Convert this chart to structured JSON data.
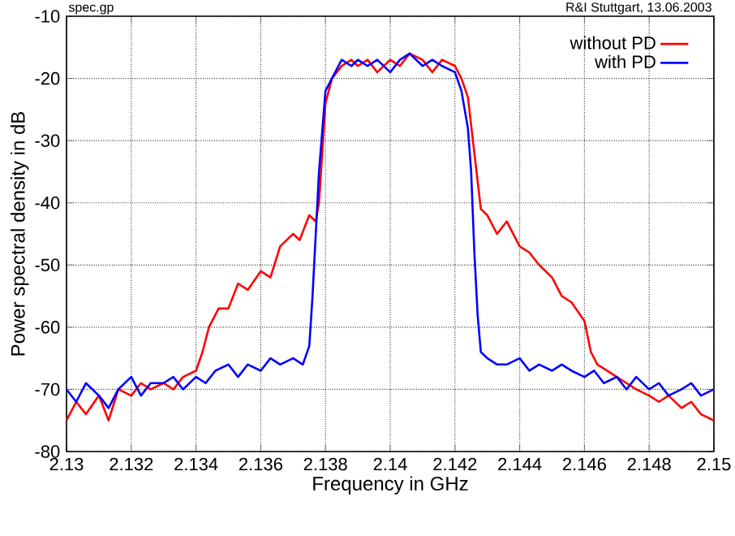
{
  "chart_data": {
    "type": "line",
    "xlabel": "Frequency in GHz",
    "ylabel": "Power spectral density in dB",
    "annotations": [
      "spec.gp",
      "R&I Stuttgart, 13.06.2003"
    ],
    "xlim": [
      2.13,
      2.15
    ],
    "ylim": [
      -80,
      -10
    ],
    "xticks": [
      2.13,
      2.132,
      2.134,
      2.136,
      2.138,
      2.14,
      2.142,
      2.144,
      2.146,
      2.148,
      2.15
    ],
    "yticks": [
      -80,
      -70,
      -60,
      -50,
      -40,
      -30,
      -20,
      -10
    ],
    "grid": true,
    "legend": "top right",
    "line_style": "solid",
    "marker": "none",
    "series": [
      {
        "name": "without PD",
        "color": "#ff0000",
        "x": [
          2.13,
          2.1303,
          2.1306,
          2.131,
          2.1313,
          2.1316,
          2.132,
          2.1323,
          2.1326,
          2.133,
          2.1333,
          2.1336,
          2.134,
          2.1342,
          2.1344,
          2.1347,
          2.135,
          2.1353,
          2.1356,
          2.136,
          2.1363,
          2.1366,
          2.137,
          2.1372,
          2.1375,
          2.1377,
          2.1378,
          2.138,
          2.1382,
          2.1385,
          2.1388,
          2.139,
          2.1393,
          2.1396,
          2.14,
          2.1403,
          2.1406,
          2.141,
          2.1413,
          2.1416,
          2.142,
          2.1422,
          2.1424,
          2.1426,
          2.1428,
          2.143,
          2.1433,
          2.1436,
          2.144,
          2.1443,
          2.1446,
          2.145,
          2.1453,
          2.1456,
          2.146,
          2.1462,
          2.1464,
          2.1467,
          2.147,
          2.1473,
          2.1476,
          2.148,
          2.1483,
          2.1486,
          2.149,
          2.1493,
          2.1496,
          2.15
        ],
        "values": [
          -75,
          -72,
          -74,
          -71,
          -75,
          -70,
          -71,
          -69,
          -70,
          -69,
          -70,
          -68,
          -67,
          -64,
          -60,
          -57,
          -57,
          -53,
          -54,
          -51,
          -52,
          -47,
          -45,
          -46,
          -42,
          -43,
          -40,
          -24,
          -20,
          -18,
          -17,
          -18,
          -17,
          -19,
          -17,
          -18,
          -16,
          -17,
          -19,
          -17,
          -18,
          -20,
          -23,
          -32,
          -41,
          -42,
          -45,
          -43,
          -47,
          -48,
          -50,
          -52,
          -55,
          -56,
          -59,
          -64,
          -66,
          -67,
          -68,
          -69,
          -70,
          -71,
          -72,
          -71,
          -73,
          -72,
          -74,
          -75
        ]
      },
      {
        "name": "with PD",
        "color": "#0000ff",
        "x": [
          2.13,
          2.1303,
          2.1306,
          2.131,
          2.1313,
          2.1316,
          2.132,
          2.1323,
          2.1326,
          2.133,
          2.1333,
          2.1336,
          2.134,
          2.1343,
          2.1346,
          2.135,
          2.1353,
          2.1356,
          2.136,
          2.1363,
          2.1366,
          2.137,
          2.1373,
          2.1375,
          2.1376,
          2.1377,
          2.1378,
          2.138,
          2.1382,
          2.1385,
          2.1388,
          2.139,
          2.1393,
          2.1396,
          2.14,
          2.1403,
          2.1406,
          2.141,
          2.1413,
          2.1416,
          2.142,
          2.1422,
          2.1424,
          2.1425,
          2.1426,
          2.1427,
          2.1428,
          2.143,
          2.1433,
          2.1436,
          2.144,
          2.1443,
          2.1446,
          2.145,
          2.1453,
          2.1456,
          2.146,
          2.1463,
          2.1466,
          2.147,
          2.1473,
          2.1476,
          2.148,
          2.1483,
          2.1486,
          2.149,
          2.1493,
          2.1496,
          2.15
        ],
        "values": [
          -70,
          -72,
          -69,
          -71,
          -73,
          -70,
          -68,
          -71,
          -69,
          -69,
          -68,
          -70,
          -68,
          -69,
          -67,
          -66,
          -68,
          -66,
          -67,
          -65,
          -66,
          -65,
          -66,
          -63,
          -55,
          -45,
          -35,
          -22,
          -20,
          -17,
          -18,
          -17,
          -18,
          -17,
          -19,
          -17,
          -16,
          -18,
          -17,
          -18,
          -19,
          -22,
          -28,
          -35,
          -48,
          -58,
          -64,
          -65,
          -66,
          -66,
          -65,
          -67,
          -66,
          -67,
          -66,
          -67,
          -68,
          -67,
          -69,
          -68,
          -70,
          -68,
          -70,
          -69,
          -71,
          -70,
          -69,
          -71,
          -70
        ]
      }
    ]
  }
}
